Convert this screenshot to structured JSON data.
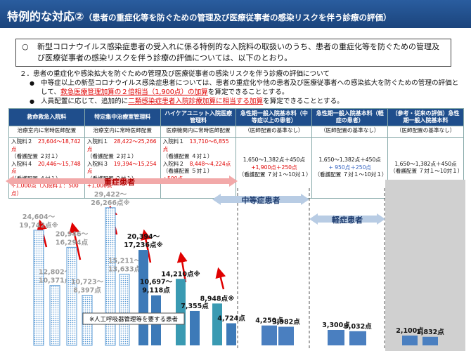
{
  "title": {
    "main": "特例的な対応②",
    "sub": "（患者の重症化等を防ぐための管理及び医療従事者の感染リスクを伴う診療の評価）"
  },
  "summary": {
    "mark": "○",
    "text": "新型コロナウイルス感染症患者の受入れに係る特例的な入院料の取扱いのうち、患者の重症化等を防ぐための管理及び医療従事者の感染リスクを伴う診療の評価については、以下のとおり。"
  },
  "section": {
    "heading": "２．患者の重症化や感染拡大を防ぐための管理及び医療従事者の感染リスクを伴う診療の評価について",
    "bullets": [
      [
        {
          "t": "中等症以上の新型コロナウイルス感染症患者については、患者の重症化や他の患者及び医療従事者への感染拡大を防ぐための管理の評価として、"
        },
        {
          "t": "救急医療管理加算の２倍相当（1,900点）の加算",
          "em": true
        },
        {
          "t": "を算定できることとする。"
        }
      ],
      [
        {
          "t": "人員配置に応じて、追加的に"
        },
        {
          "t": "二類感染症患者入院診療加算に相当する加算",
          "em": true
        },
        {
          "t": "を算定できることとする。"
        }
      ]
    ]
  },
  "table": {
    "header": [
      "救命救急入院料",
      "特定集中治療室管理料",
      "ハイケアユニット入院医療管理料",
      "急性期一般入院基本料（中等症以上の患者）",
      "急性期一般入院基本料（軽症の患者）",
      "（参考・従来の評価）急性期一般入院基本料"
    ],
    "staff": [
      "治療室内に常時医師配置",
      "治療室内に常時医師配置",
      "医療機関内に常時医師配置",
      "（医師配置の基準なし）",
      "（医師配置の基準なし）",
      "（医師配置の基準なし）"
    ],
    "detail": [
      [
        [
          {
            "t": "入院料２　"
          },
          {
            "t": "23,604～18,742点",
            "color": "#e00000"
          }
        ],
        [
          {
            "t": "（看護配置 ２対１）"
          }
        ],
        [
          {
            "t": "入院料４　"
          },
          {
            "t": "20,446～15,748点",
            "color": "#e00000"
          }
        ],
        [
          {
            "t": "（看護配置 ４対１）"
          }
        ],
        [
          {
            "t": "+1,000点（入院料１：500点）",
            "color": "#e00000"
          }
        ]
      ],
      [
        [
          {
            "t": "入院料１　"
          },
          {
            "t": "28,422～25,266点",
            "color": "#e00000"
          }
        ],
        [
          {
            "t": "（看護配置 ２対１）"
          }
        ],
        [
          {
            "t": "入院料３　"
          },
          {
            "t": "19,394～15,254点",
            "color": "#e00000"
          }
        ],
        [
          {
            "t": "（看護配置 ２対１）"
          }
        ],
        [
          {
            "t": "+1,000点",
            "color": "#e00000"
          }
        ]
      ],
      [
        [
          {
            "t": "入院料１　"
          },
          {
            "t": "13,710～6,855点",
            "color": "#e00000"
          }
        ],
        [
          {
            "t": "（看護配置 ４対１）"
          }
        ],
        [
          {
            "t": "入院料２　"
          },
          {
            "t": "8,448～4,224点",
            "color": "#e00000"
          }
        ],
        [
          {
            "t": "（看護配置 ５対１）"
          }
        ],
        [
          {
            "t": "+500点",
            "color": "#e00000"
          }
        ]
      ],
      [
        [
          {
            "t": "1,650～1,382点＋450点"
          }
        ],
        [
          {
            "t": "+1,900点＋250点",
            "color": "#e00000"
          }
        ],
        [
          {
            "t": "（看護配置 ７対１～10対１）"
          }
        ]
      ],
      [
        [
          {
            "t": "1,650～1,382点＋450点"
          }
        ],
        [
          {
            "t": "+ 950点＋250点",
            "color": "#3060c0"
          }
        ],
        [
          {
            "t": "（看護配置 ７対１～10対１）"
          }
        ]
      ],
      [
        [
          {
            "t": "1,650～1,382点＋450点"
          }
        ],
        [
          {
            "t": "（看護配置 ７対１～10対１）"
          }
        ]
      ]
    ]
  },
  "chart": {
    "bands": [
      "重症患者",
      "中等症患者",
      "軽症患者"
    ],
    "note": "※人工呼吸器管理等を要する患者",
    "bars": [
      {
        "label": [
          "24,604～",
          "19,742点※"
        ],
        "value": 24604,
        "pattern": true,
        "color": "#5b9bd5"
      },
      {
        "label": [
          "12,802～",
          "10,371点"
        ],
        "value": 12802,
        "pattern": true,
        "color": "#5b9bd5"
      },
      {
        "label": [
          "20,946～",
          "16,294点"
        ],
        "value": 20946,
        "pattern": true,
        "color": "#5b9bd5"
      },
      {
        "label": [
          "10,723～",
          "8,397点"
        ],
        "value": 10723,
        "pattern": true,
        "color": "#5b9bd5"
      },
      {
        "label": [
          "29,422～",
          "26,266点※"
        ],
        "value": 29422,
        "pattern": true,
        "color": "#5b9bd5"
      },
      {
        "label": [
          "15,211～",
          "13,633点"
        ],
        "value": 15211,
        "pattern": true,
        "color": "#5b9bd5"
      },
      {
        "label": [
          "20,394～",
          "17,236点※"
        ],
        "value": 20394,
        "pattern": false,
        "color": "#3d7ab8"
      },
      {
        "label": [
          "10,697～",
          "9,118点"
        ],
        "value": 10697,
        "pattern": false,
        "color": "#3d7ab8"
      },
      {
        "label": [
          "14,210点※"
        ],
        "value": 14210,
        "pattern": false,
        "color": "#3a9ab2"
      },
      {
        "label": [
          "7,355点"
        ],
        "value": 7355,
        "pattern": false,
        "color": "#3d7ab8"
      },
      {
        "label": [
          "8,948点※"
        ],
        "value": 8948,
        "pattern": false,
        "color": "#3a9ab2"
      },
      {
        "label": [
          "4,724点"
        ],
        "value": 4724,
        "pattern": false,
        "color": "#3d7ab8"
      },
      {
        "label": [
          "4,250点"
        ],
        "value": 4250,
        "pattern": false,
        "color": "#4a7fc0"
      },
      {
        "label": [
          "3,982点"
        ],
        "value": 3982,
        "pattern": false,
        "color": "#4a7fc0"
      },
      {
        "label": [
          "3,300点"
        ],
        "value": 3300,
        "pattern": false,
        "color": "#4a7fc0"
      },
      {
        "label": [
          "3,032点"
        ],
        "value": 3032,
        "pattern": false,
        "color": "#4a7fc0"
      },
      {
        "label": [
          "2,100点"
        ],
        "value": 2100,
        "pattern": false,
        "color": "#4a7fc0"
      },
      {
        "label": [
          "1,832点"
        ],
        "value": 1832,
        "pattern": false,
        "color": "#4a7fc0"
      }
    ]
  }
}
